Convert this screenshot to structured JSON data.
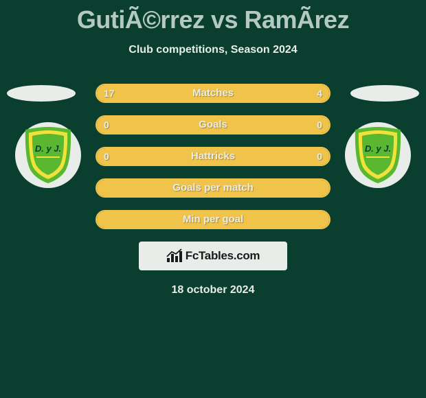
{
  "title": "GutiÃ©rrez vs RamÃ­rez",
  "subtitle": "Club competitions, Season 2024",
  "date": "18 october 2024",
  "site_name": "FcTables.com",
  "colors": {
    "background": "#0a3f2f",
    "bar_border": "#f0c34a",
    "bar_fill": "#f0c34a",
    "text_light": "#e8ede9",
    "title_text": "#b4c9c2",
    "badge_green": "#59b82f",
    "badge_yellow": "#f0e23a"
  },
  "badge_text": "D. y J.",
  "bars": [
    {
      "label": "Matches",
      "left_val": "17",
      "right_val": "4",
      "left_pct": 81,
      "right_pct": 19
    },
    {
      "label": "Goals",
      "left_val": "0",
      "right_val": "0",
      "left_pct": 50,
      "right_pct": 50
    },
    {
      "label": "Hattricks",
      "left_val": "0",
      "right_val": "0",
      "left_pct": 50,
      "right_pct": 50
    },
    {
      "label": "Goals per match",
      "left_val": "",
      "right_val": "",
      "left_pct": 100,
      "right_pct": 0
    },
    {
      "label": "Min per goal",
      "left_val": "",
      "right_val": "",
      "left_pct": 100,
      "right_pct": 0
    }
  ]
}
